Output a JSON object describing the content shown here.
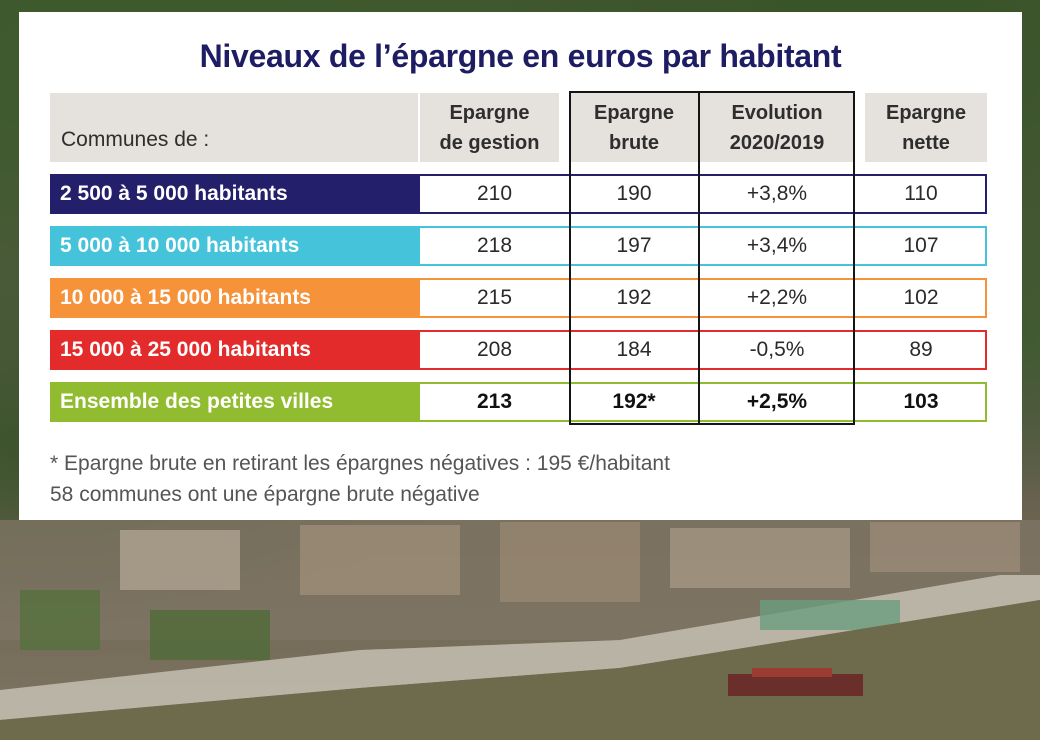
{
  "chart_data": {
    "type": "table",
    "title": "Niveaux de l’épargne en euros par habitant",
    "header": {
      "label": "Communes de :",
      "columns": [
        "Epargne\nde gestion",
        "Epargne\nbrute",
        "Evolution\n2020/2019",
        "Epargne\nnette"
      ]
    },
    "rows": [
      {
        "label": "2 500 à 5 000 habitants",
        "color": "#231f6b",
        "values": [
          "210",
          "190",
          "+3,8%",
          "110"
        ]
      },
      {
        "label": "5 000 à 10 000 habitants",
        "color": "#45c3da",
        "values": [
          "218",
          "197",
          "+3,4%",
          "107"
        ]
      },
      {
        "label": "10 000 à 15 000 habitants",
        "color": "#f5923a",
        "values": [
          "215",
          "192",
          "+2,2%",
          "102"
        ]
      },
      {
        "label": "15 000 à 25 000 habitants",
        "color": "#e32b2b",
        "values": [
          "208",
          "184",
          "-0,5%",
          "89"
        ]
      },
      {
        "label": "Ensemble des petites villes",
        "color": "#92bc2f",
        "values": [
          "213",
          "192*",
          "+2,5%",
          "103"
        ]
      }
    ],
    "highlighted_columns": [
      "Epargne\nbrute",
      "Evolution\n2020/2019"
    ],
    "footnotes": [
      "* Epargne brute en retirant les épargnes négatives : 195 €/habitant",
      "58 communes ont une épargne brute négative"
    ]
  },
  "colors": {
    "title": "#1e1c63",
    "header_bg": "#e5e1dc",
    "frame": "#151515"
  }
}
